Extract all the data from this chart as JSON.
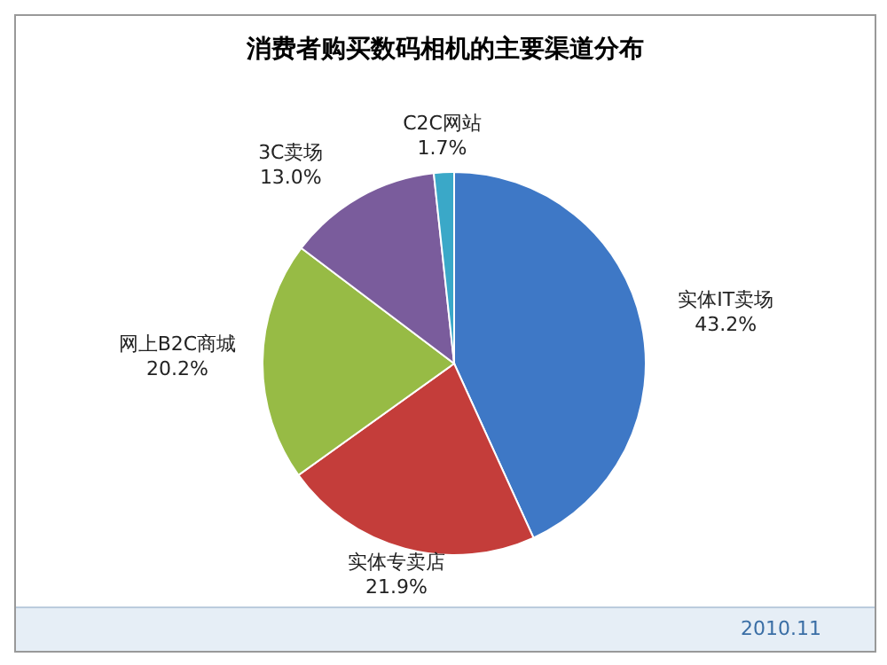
{
  "chart_data": {
    "type": "pie",
    "title": "消费者购买数码相机的主要渠道分布",
    "categories": [
      "实体IT卖场",
      "实体专卖店",
      "网上B2C商城",
      "3C卖场",
      "C2C网站"
    ],
    "values": [
      43.2,
      21.9,
      20.2,
      13.0,
      1.7
    ],
    "value_labels": [
      "43.2%",
      "21.9%",
      "20.2%",
      "13.0%",
      "1.7%"
    ],
    "colors": [
      "#3e78c6",
      "#c43d3a",
      "#97bb45",
      "#7a5c9c",
      "#3aa8c8"
    ],
    "annotations": [
      "2010.11"
    ],
    "legend": false
  }
}
